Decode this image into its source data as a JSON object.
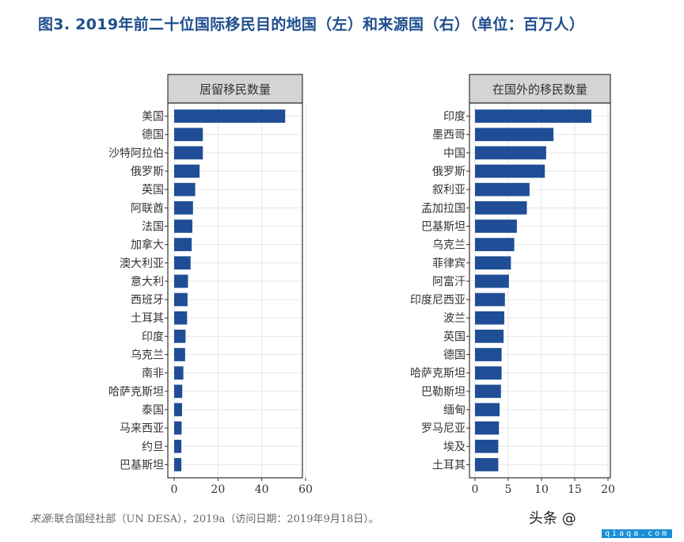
{
  "title": "图3. 2019年前二十位国际移民目的地国（左）和来源国（右）（单位：百万人）",
  "source": {
    "label": "来源:",
    "text": "联合国经社部（UN DESA），2019a（访问日期：2019年9月18日）。"
  },
  "watermark": {
    "text": "头条 @",
    "logo": "qiaqa.com"
  },
  "colors": {
    "bar": "#1f4e96",
    "panel_header": "#d4d4d4",
    "grid": "#e6e6e6",
    "title": "#1f4e8c"
  },
  "chart_data": [
    {
      "type": "bar",
      "orientation": "horizontal",
      "title": "居留移民数量",
      "categories": [
        "美国",
        "德国",
        "沙特阿拉伯",
        "俄罗斯",
        "英国",
        "阿联酋",
        "法国",
        "加拿大",
        "澳大利亚",
        "意大利",
        "西班牙",
        "土耳其",
        "印度",
        "乌克兰",
        "南非",
        "哈萨克斯坦",
        "泰国",
        "马来西亚",
        "约旦",
        "巴基斯坦"
      ],
      "values": [
        50.7,
        13.1,
        13.1,
        11.6,
        9.6,
        8.6,
        8.3,
        8.0,
        7.5,
        6.3,
        6.1,
        5.9,
        5.2,
        5.0,
        4.2,
        3.7,
        3.6,
        3.4,
        3.3,
        3.3
      ],
      "xlim": [
        0,
        60
      ],
      "xticks": [
        "0",
        "20",
        "40",
        "60"
      ],
      "grid": true
    },
    {
      "type": "bar",
      "orientation": "horizontal",
      "title": "在国外的移民数量",
      "categories": [
        "印度",
        "墨西哥",
        "中国",
        "俄罗斯",
        "叙利亚",
        "孟加拉国",
        "巴基斯坦",
        "乌克兰",
        "菲律宾",
        "阿富汗",
        "印度尼西亚",
        "波兰",
        "英国",
        "德国",
        "哈萨克斯坦",
        "巴勒斯坦",
        "缅甸",
        "罗马尼亚",
        "埃及",
        "土耳其"
      ],
      "values": [
        17.5,
        11.8,
        10.7,
        10.5,
        8.2,
        7.8,
        6.3,
        5.9,
        5.4,
        5.1,
        4.5,
        4.4,
        4.3,
        4.0,
        4.0,
        3.9,
        3.7,
        3.6,
        3.5,
        3.5
      ],
      "xlim": [
        0,
        20
      ],
      "xticks": [
        "0",
        "5",
        "10",
        "15",
        "20"
      ],
      "grid": true
    }
  ]
}
